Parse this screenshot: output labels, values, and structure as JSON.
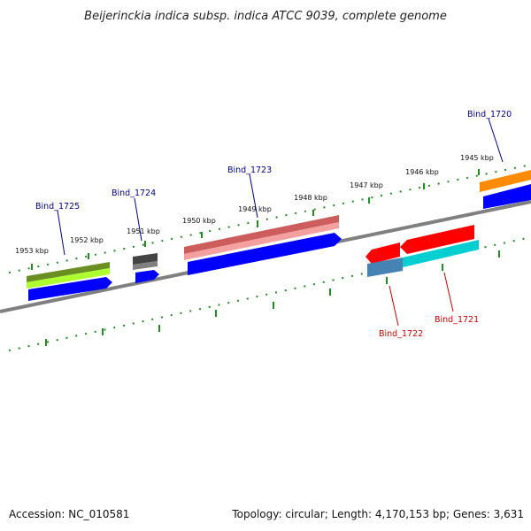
{
  "title": "Beijerinckia indica subsp. indica ATCC 9039, complete genome",
  "footer": {
    "accession": "Accession: NC_010581",
    "summary": "Topology: circular; Length: 4,170,153 bp; Genes: 3,631"
  },
  "ticks": [
    "1953 kbp",
    "1952 kbp",
    "1951 kbp",
    "1950 kbp",
    "1949 kbp",
    "1948 kbp",
    "1947 kbp",
    "1946 kbp",
    "1945 kbp"
  ],
  "genes": [
    {
      "id": "Bind_1725",
      "strand": "forward"
    },
    {
      "id": "Bind_1724",
      "strand": "forward"
    },
    {
      "id": "Bind_1723",
      "strand": "forward"
    },
    {
      "id": "Bind_1722",
      "strand": "reverse"
    },
    {
      "id": "Bind_1721",
      "strand": "reverse"
    },
    {
      "id": "Bind_1720",
      "strand": "forward"
    }
  ],
  "colors": {
    "forward_label": "#00008b",
    "reverse_label": "#cc0000",
    "cds": "#0000ff",
    "backbone": "#808080",
    "tick": "#228b22",
    "bind_1725_feature": "#9acd32",
    "bind_1724_feature": "#555555",
    "bind_1723_feature": "#f08080",
    "bind_1722_feature": "#4682b4",
    "bind_1721_feature": "#00ced1",
    "bind_1720_feature": "#ff8c00",
    "reverse_cds": "#ff0000"
  }
}
